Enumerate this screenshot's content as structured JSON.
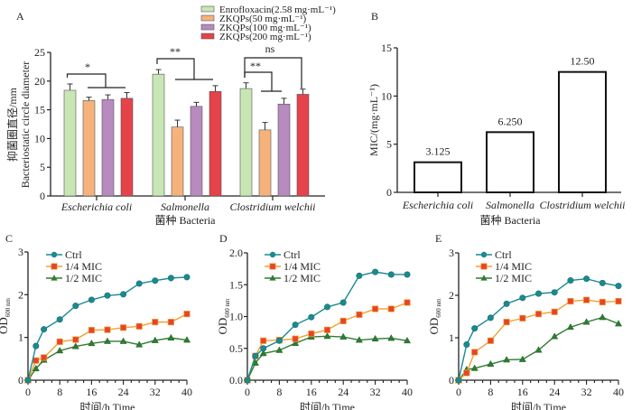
{
  "chart_data": [
    {
      "panel": "A",
      "type": "bar",
      "title": "",
      "xlabel": "菌种  Bacteria",
      "ylabel_cn": "抑菌圈直径/mm",
      "ylabel_en": "Bacteriostatic circle diameter",
      "ylim": [
        0,
        25
      ],
      "yticks": [
        0,
        5,
        10,
        15,
        20,
        25
      ],
      "categories": [
        "Escherichia coli",
        "Salmonella",
        "Clostridium welchii"
      ],
      "legend_position": "top-right",
      "series": [
        {
          "name": "Enrofloxacin(2.58 mg·mL⁻¹)",
          "color": "#c8e6b4",
          "values": [
            18.4,
            21.2,
            18.7
          ],
          "errors": [
            1.1,
            0.8,
            1.0
          ]
        },
        {
          "name": "ZKQPs(50 mg·mL⁻¹)",
          "color": "#f6b27b",
          "values": [
            16.6,
            12.0,
            11.5
          ],
          "errors": [
            0.6,
            1.2,
            1.3
          ]
        },
        {
          "name": "ZKQPs(100 mg·mL⁻¹)",
          "color": "#b78bbf",
          "values": [
            16.8,
            15.6,
            16.0
          ],
          "errors": [
            0.8,
            0.7,
            1.0
          ]
        },
        {
          "name": "ZKQPs(200 mg·mL⁻¹)",
          "color": "#e5424a",
          "values": [
            17.0,
            18.2,
            17.7
          ],
          "errors": [
            1.0,
            1.0,
            0.9
          ]
        }
      ],
      "annotations": [
        {
          "group": 0,
          "label": "*"
        },
        {
          "group": 1,
          "label": "**"
        },
        {
          "group": 2,
          "label": "**"
        },
        {
          "group": 2,
          "label": "ns"
        }
      ]
    },
    {
      "panel": "B",
      "type": "bar",
      "xlabel": "菌种  Bacteria",
      "ylabel": "MIC/(mg·mL⁻¹)",
      "ylim": [
        0,
        15
      ],
      "yticks": [
        0,
        5,
        10,
        15
      ],
      "categories": [
        "Escherichia coli",
        "Salmonella",
        "Clostridium welchii"
      ],
      "values": [
        3.125,
        6.25,
        12.5
      ],
      "data_labels": [
        "3.125",
        "6.250",
        "12.50"
      ]
    },
    {
      "panel": "C",
      "type": "line",
      "xlabel": "时间/h  Time",
      "ylabel": "OD",
      "ylabel_sub": "600 nm",
      "xlim": [
        0,
        40
      ],
      "ylim": [
        0,
        3
      ],
      "xticks": [
        0,
        8,
        16,
        24,
        32,
        40
      ],
      "yticks": [
        0,
        1,
        2,
        3
      ],
      "x": [
        0,
        2,
        4,
        8,
        12,
        16,
        20,
        24,
        28,
        32,
        36,
        40
      ],
      "legend_position": "top-left",
      "series": [
        {
          "name": "Ctrl",
          "marker": "circle",
          "values": [
            0,
            0.8,
            1.19,
            1.42,
            1.74,
            1.88,
            1.98,
            2.01,
            2.26,
            2.33,
            2.39,
            2.41
          ]
        },
        {
          "name": "1/4 MIC",
          "marker": "square",
          "values": [
            0,
            0.46,
            0.53,
            0.9,
            0.95,
            1.17,
            1.18,
            1.23,
            1.26,
            1.36,
            1.36,
            1.55
          ]
        },
        {
          "name": "1/2 MIC",
          "marker": "triangle",
          "values": [
            0,
            0.27,
            0.47,
            0.69,
            0.79,
            0.86,
            0.91,
            0.91,
            0.83,
            0.93,
            0.99,
            0.94
          ]
        }
      ]
    },
    {
      "panel": "D",
      "type": "line",
      "xlabel": "时间/h  Time",
      "ylabel": "OD",
      "ylabel_sub": "600 nm",
      "xlim": [
        0,
        40
      ],
      "ylim": [
        0,
        2.0
      ],
      "xticks": [
        0,
        8,
        16,
        24,
        32,
        40
      ],
      "yticks": [
        0.0,
        0.5,
        1.0,
        1.5,
        2.0
      ],
      "ytick_labels": [
        "0.0",
        "0.5",
        "1.0",
        "1.5",
        "2.0"
      ],
      "x": [
        0,
        2,
        4,
        8,
        12,
        16,
        20,
        24,
        28,
        32,
        36,
        40
      ],
      "legend_position": "top-left",
      "series": [
        {
          "name": "Ctrl",
          "marker": "circle",
          "values": [
            0,
            0.38,
            0.5,
            0.62,
            0.87,
            0.99,
            1.15,
            1.22,
            1.64,
            1.7,
            1.66,
            1.66
          ]
        },
        {
          "name": "1/4 MIC",
          "marker": "square",
          "values": [
            0,
            0.38,
            0.62,
            0.63,
            0.65,
            0.73,
            0.79,
            0.93,
            1.03,
            1.12,
            1.12,
            1.22
          ]
        },
        {
          "name": "1/2 MIC",
          "marker": "triangle",
          "values": [
            0,
            0.27,
            0.42,
            0.47,
            0.58,
            0.68,
            0.69,
            0.68,
            0.63,
            0.65,
            0.66,
            0.62
          ]
        }
      ]
    },
    {
      "panel": "E",
      "type": "line",
      "xlabel": "时间/h  Time",
      "ylabel": "OD",
      "ylabel_sub": "600 nm",
      "xlim": [
        0,
        40
      ],
      "ylim": [
        0,
        3
      ],
      "xticks": [
        0,
        8,
        16,
        24,
        32,
        40
      ],
      "yticks": [
        0,
        1,
        2,
        3
      ],
      "x": [
        0,
        2,
        4,
        8,
        12,
        16,
        20,
        24,
        28,
        32,
        36,
        40
      ],
      "legend_position": "top-left",
      "series": [
        {
          "name": "Ctrl",
          "marker": "circle",
          "values": [
            0,
            0.84,
            1.22,
            1.47,
            1.8,
            1.94,
            2.04,
            2.07,
            2.35,
            2.39,
            2.29,
            2.22
          ]
        },
        {
          "name": "1/4 MIC",
          "marker": "square",
          "values": [
            0,
            0.17,
            0.66,
            0.93,
            1.37,
            1.46,
            1.56,
            1.61,
            1.86,
            1.89,
            1.84,
            1.86
          ]
        },
        {
          "name": "1/2 MIC",
          "marker": "triangle",
          "values": [
            0,
            0.25,
            0.28,
            0.38,
            0.48,
            0.49,
            0.71,
            1.03,
            1.25,
            1.37,
            1.48,
            1.33
          ]
        }
      ]
    }
  ],
  "line_styles": {
    "Ctrl": {
      "line": "#1b8a8f",
      "fill": "#1b8a8f"
    },
    "1/4 MIC": {
      "line": "#f0a030",
      "fill": "#e8432a"
    },
    "1/2 MIC": {
      "line": "#2e7d32",
      "fill": "#2e7d32"
    }
  }
}
